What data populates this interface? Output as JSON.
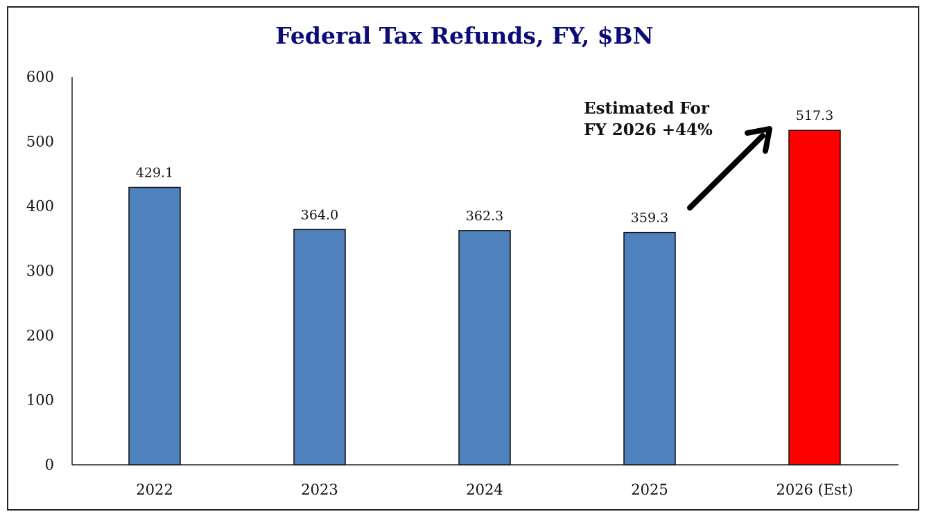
{
  "chart_data": {
    "type": "bar",
    "title": "Federal Tax Refunds, FY, $BN",
    "xlabel": "",
    "ylabel": "",
    "categories": [
      "2022",
      "2023",
      "2024",
      "2025",
      "2026 (Est)"
    ],
    "values": [
      429.1,
      364.0,
      362.3,
      359.3,
      517.3
    ],
    "data_labels": [
      "429.1",
      "364.0",
      "362.3",
      "359.3",
      "517.3"
    ],
    "ylim": [
      0,
      600
    ],
    "yticks": [
      0,
      100,
      200,
      300,
      400,
      500,
      600
    ],
    "grid": false,
    "legend": "none",
    "colors": [
      "#4f81bd",
      "#4f81bd",
      "#4f81bd",
      "#4f81bd",
      "#ff0000"
    ],
    "annotation": {
      "lines": [
        "Estimated For",
        "FY 2026 +44%"
      ],
      "points_to": "2026 (Est)"
    }
  }
}
